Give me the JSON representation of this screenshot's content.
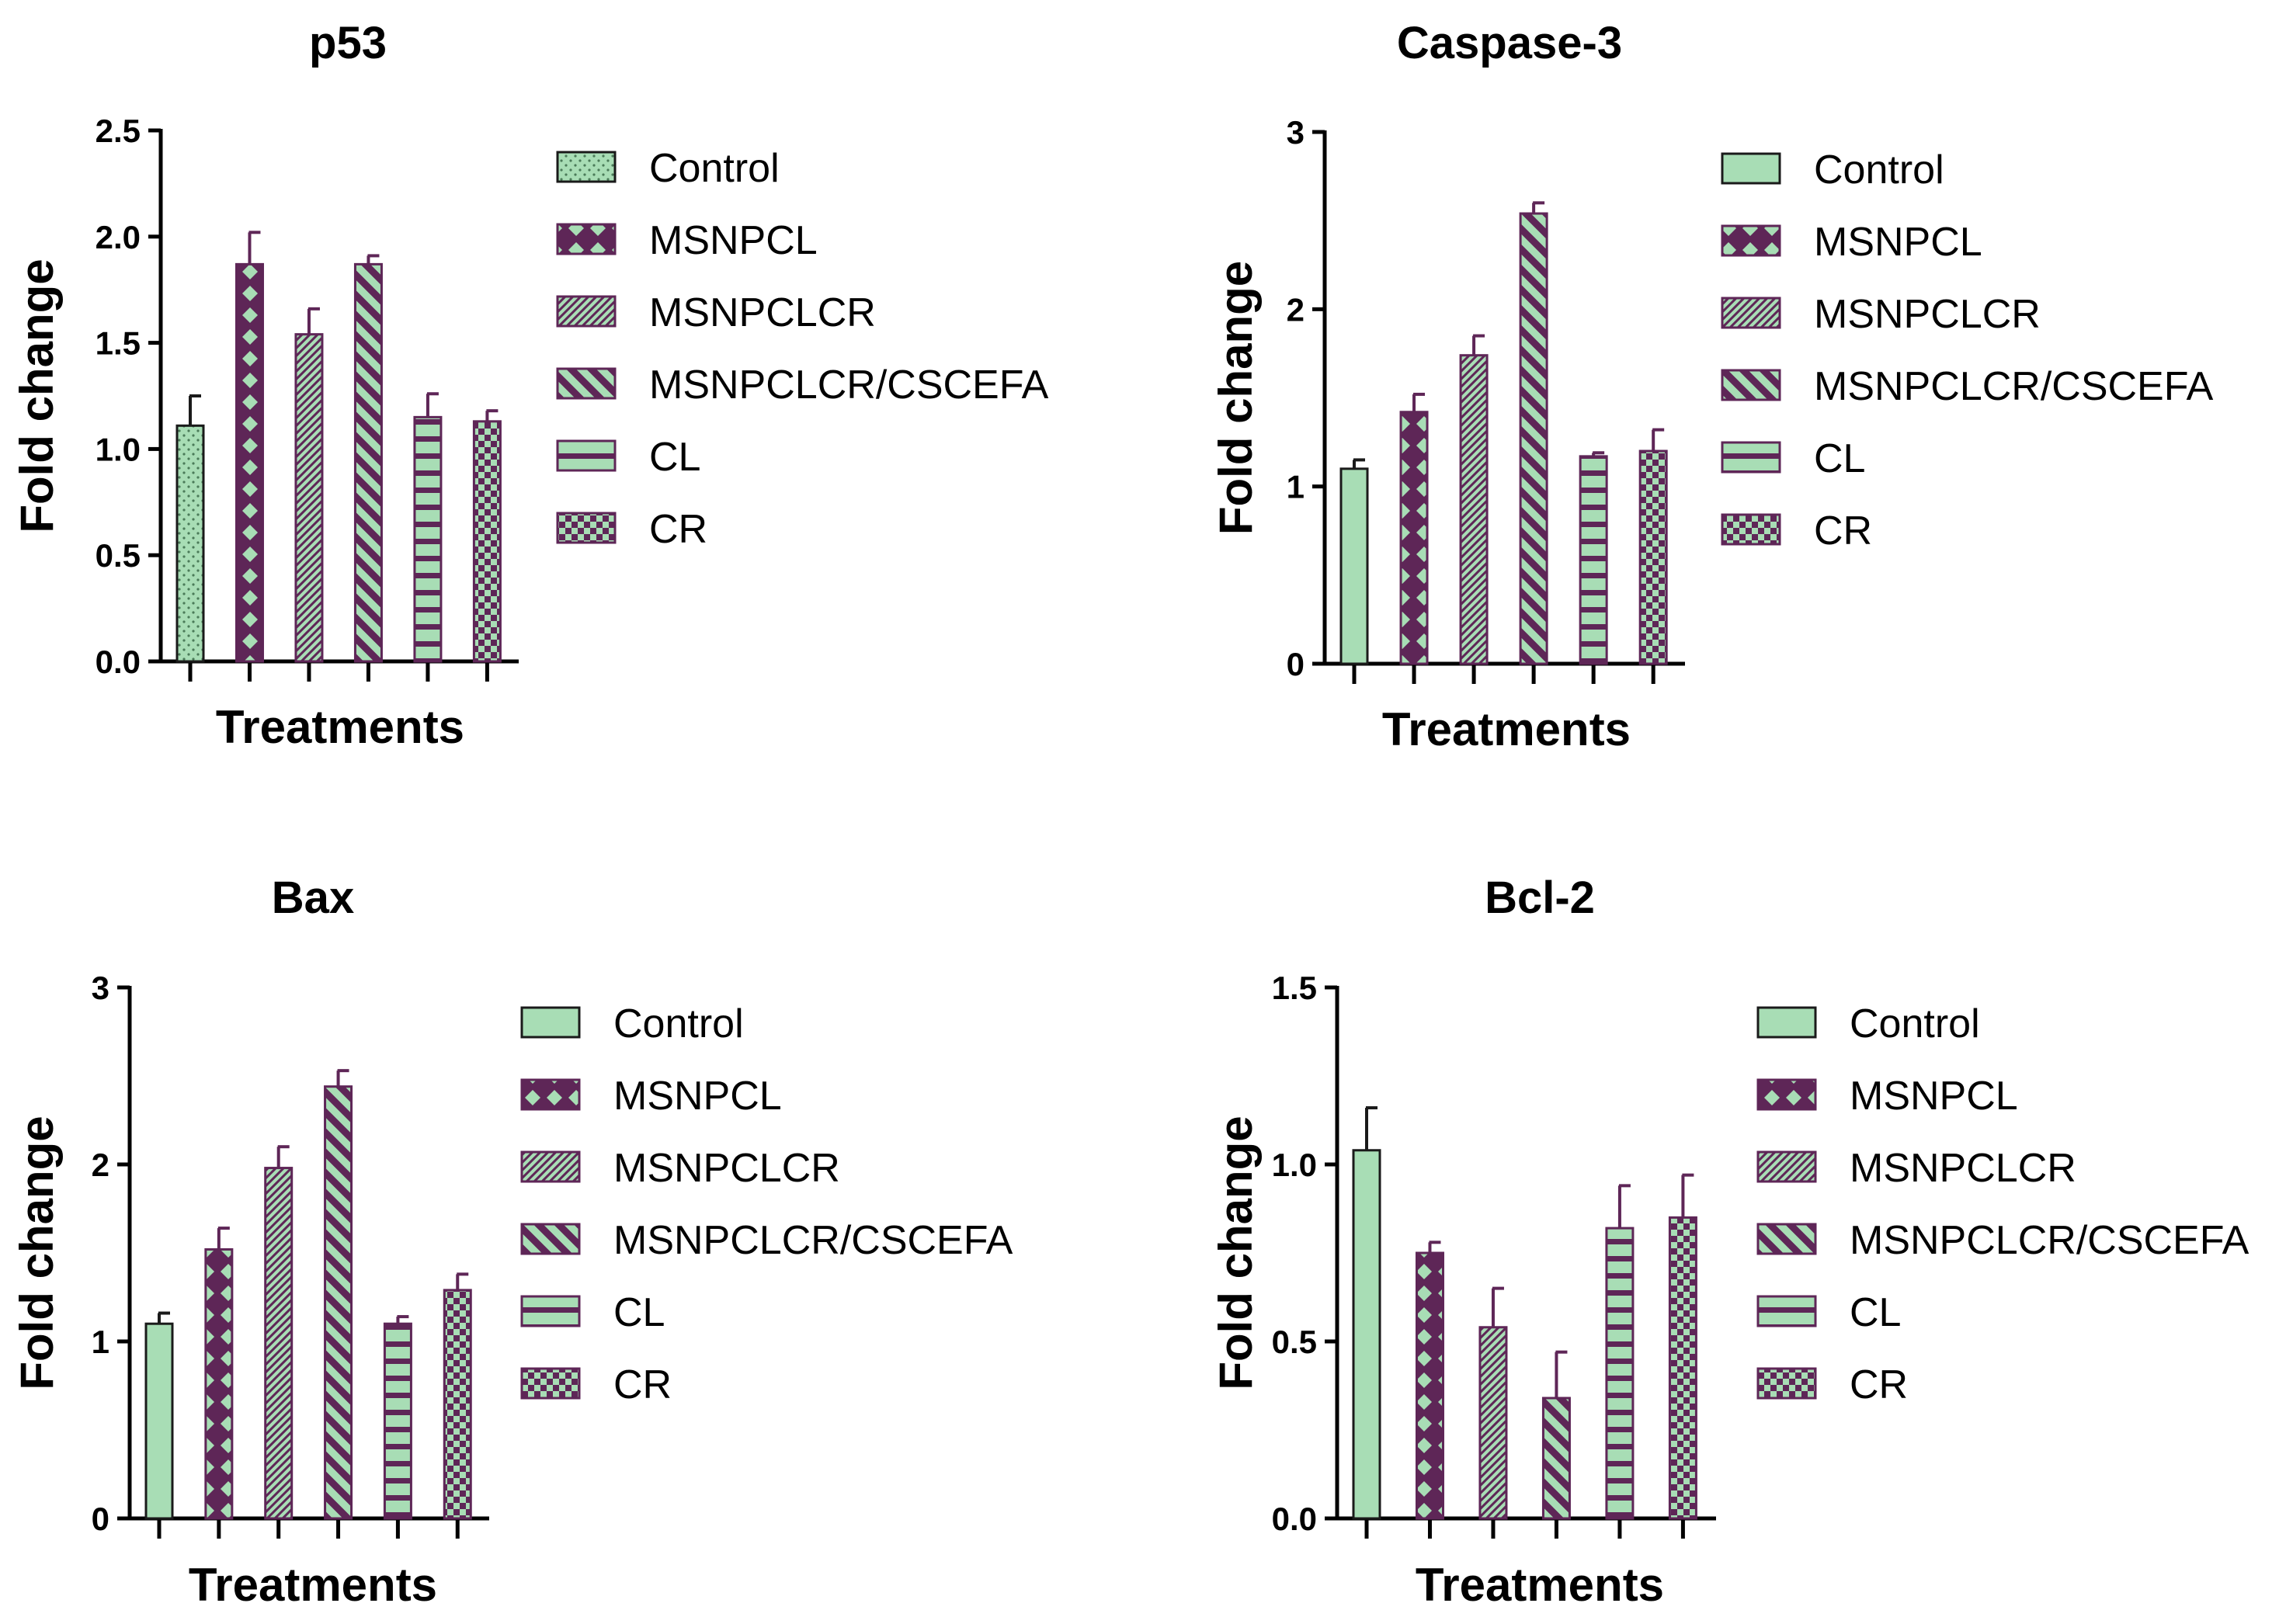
{
  "figure": {
    "series_names": [
      "Control",
      "MSNPCL",
      "MSNPCLCR",
      "MSNPCLCR/CSCEFA",
      "CL",
      "CR"
    ],
    "colors": {
      "green": "#a8ddb5",
      "purple": "#5e2657",
      "outline": "#1a1a1a"
    }
  },
  "chart_data": [
    {
      "type": "bar",
      "title": "p53",
      "xlabel": "Treatments",
      "ylabel": "Fold change",
      "ylim": [
        0,
        2.5
      ],
      "yticks": [
        0,
        0.5,
        1,
        1.5,
        2,
        2.5
      ],
      "ytick_labels": [
        "0.0",
        "0.5",
        "1.0",
        "1.5",
        "2.0",
        "2.5"
      ],
      "categories": [
        "Control",
        "MSNPCL",
        "MSNPCLCR",
        "MSNPCLCR/CSCEFA",
        "CL",
        "CR"
      ],
      "values": [
        1.11,
        1.87,
        1.54,
        1.87,
        1.15,
        1.13
      ],
      "errors": [
        0.14,
        0.15,
        0.12,
        0.04,
        0.11,
        0.05
      ],
      "patterns": [
        "dots",
        "cross",
        "hatch-fine",
        "diag",
        "horiz",
        "checker"
      ]
    },
    {
      "type": "bar",
      "title": "Caspase-3",
      "xlabel": "Treatments",
      "ylabel": "Fold change",
      "ylim": [
        0,
        3
      ],
      "yticks": [
        0,
        1,
        2,
        3
      ],
      "ytick_labels": [
        "0",
        "1",
        "2",
        "3"
      ],
      "categories": [
        "Control",
        "MSNPCL",
        "MSNPCLCR",
        "MSNPCLCR/CSCEFA",
        "CL",
        "CR"
      ],
      "values": [
        1.1,
        1.42,
        1.74,
        2.54,
        1.17,
        1.2
      ],
      "errors": [
        0.05,
        0.1,
        0.11,
        0.06,
        0.02,
        0.12
      ],
      "patterns": [
        "solid",
        "cross",
        "hatch-fine",
        "diag",
        "horiz",
        "checker"
      ]
    },
    {
      "type": "bar",
      "title": "Bax",
      "xlabel": "Treatments",
      "ylabel": "Fold change",
      "ylim": [
        0,
        3
      ],
      "yticks": [
        0,
        1,
        2,
        3
      ],
      "ytick_labels": [
        "0",
        "1",
        "2",
        "3"
      ],
      "categories": [
        "Control",
        "MSNPCL",
        "MSNPCLCR",
        "MSNPCLCR/CSCEFA",
        "CL",
        "CR"
      ],
      "values": [
        1.1,
        1.52,
        1.98,
        2.44,
        1.1,
        1.29
      ],
      "errors": [
        0.06,
        0.12,
        0.12,
        0.09,
        0.04,
        0.09
      ],
      "patterns": [
        "solid",
        "cross",
        "hatch-fine",
        "diag",
        "horiz",
        "checker"
      ]
    },
    {
      "type": "bar",
      "title": "Bcl-2",
      "xlabel": "Treatments",
      "ylabel": "Fold change",
      "ylim": [
        0,
        1.5
      ],
      "yticks": [
        0,
        0.5,
        1,
        1.5
      ],
      "ytick_labels": [
        "0.0",
        "0.5",
        "1.0",
        "1.5"
      ],
      "categories": [
        "Control",
        "MSNPCL",
        "MSNPCLCR",
        "MSNPCLCR/CSCEFA",
        "CL",
        "CR"
      ],
      "values": [
        1.04,
        0.75,
        0.54,
        0.34,
        0.82,
        0.85
      ],
      "errors": [
        0.12,
        0.03,
        0.11,
        0.13,
        0.12,
        0.12
      ],
      "patterns": [
        "solid",
        "cross",
        "hatch-fine",
        "diag",
        "horiz",
        "checker"
      ]
    }
  ]
}
